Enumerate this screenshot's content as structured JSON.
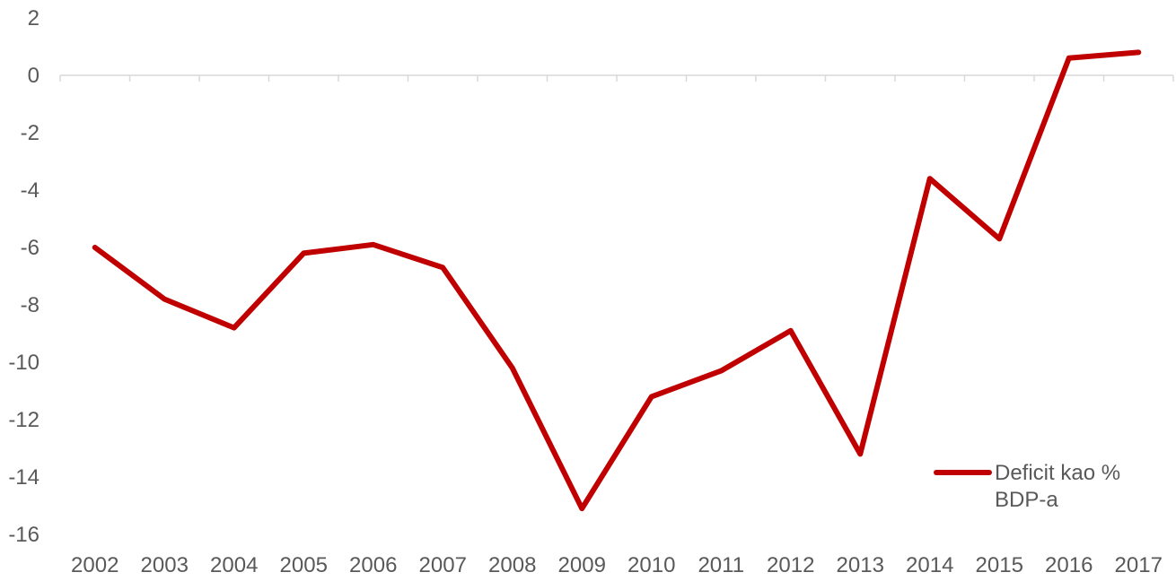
{
  "chart_data": {
    "type": "line",
    "title": "",
    "xlabel": "",
    "ylabel": "",
    "ylim": [
      -16,
      2
    ],
    "yticks": [
      2,
      0,
      -2,
      -4,
      -6,
      -8,
      -10,
      -12,
      -14,
      -16
    ],
    "categories": [
      "2002",
      "2003",
      "2004",
      "2005",
      "2006",
      "2007",
      "2008",
      "2009",
      "2010",
      "2011",
      "2012",
      "2013",
      "2014",
      "2015",
      "2016",
      "2017"
    ],
    "series": [
      {
        "name": "Deficit kao % BDP-a",
        "legend_lines": [
          "Deficit kao %",
          "BDP-a"
        ],
        "color": "#C00000",
        "values": [
          -6.0,
          -7.8,
          -8.8,
          -6.2,
          -5.9,
          -6.7,
          -10.2,
          -15.1,
          -11.2,
          -10.3,
          -8.9,
          -13.2,
          -3.6,
          -5.7,
          0.6,
          0.8
        ]
      }
    ],
    "grid": false,
    "legend": "bottom-right"
  }
}
